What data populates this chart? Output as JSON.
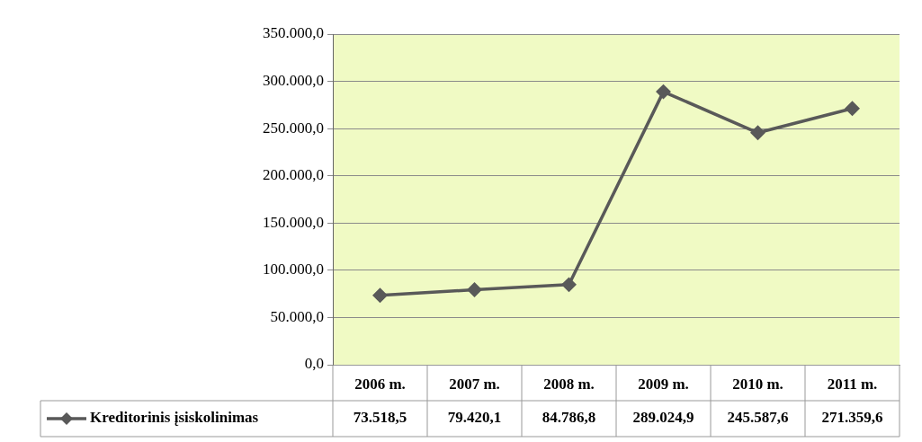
{
  "chart_data": {
    "type": "line",
    "categories": [
      "2006 m.",
      "2007 m.",
      "2008 m.",
      "2009 m.",
      "2010 m.",
      "2011 m."
    ],
    "series": [
      {
        "name": "Kreditorinis įsiskolinimas",
        "color": "#595959",
        "values": [
          73518.5,
          79420.1,
          84786.8,
          289024.9,
          245587.6,
          271359.6
        ],
        "value_labels": [
          "73.518,5",
          "79.420,1",
          "84.786,8",
          "289.024,9",
          "245.587,6",
          "271.359,6"
        ]
      }
    ],
    "ylim": [
      0,
      350000
    ],
    "yticks": [
      {
        "value": 0,
        "label": "0,0"
      },
      {
        "value": 50000,
        "label": "50.000,0"
      },
      {
        "value": 100000,
        "label": "100.000,0"
      },
      {
        "value": 150000,
        "label": "150.000,0"
      },
      {
        "value": 200000,
        "label": "200.000,0"
      },
      {
        "value": 250000,
        "label": "250.000,0"
      },
      {
        "value": 300000,
        "label": "300.000,0"
      },
      {
        "value": 350000,
        "label": "350.000,0"
      }
    ],
    "grid": "y",
    "legend": "bottom left",
    "marker": "diamond",
    "line_style": "solid"
  }
}
